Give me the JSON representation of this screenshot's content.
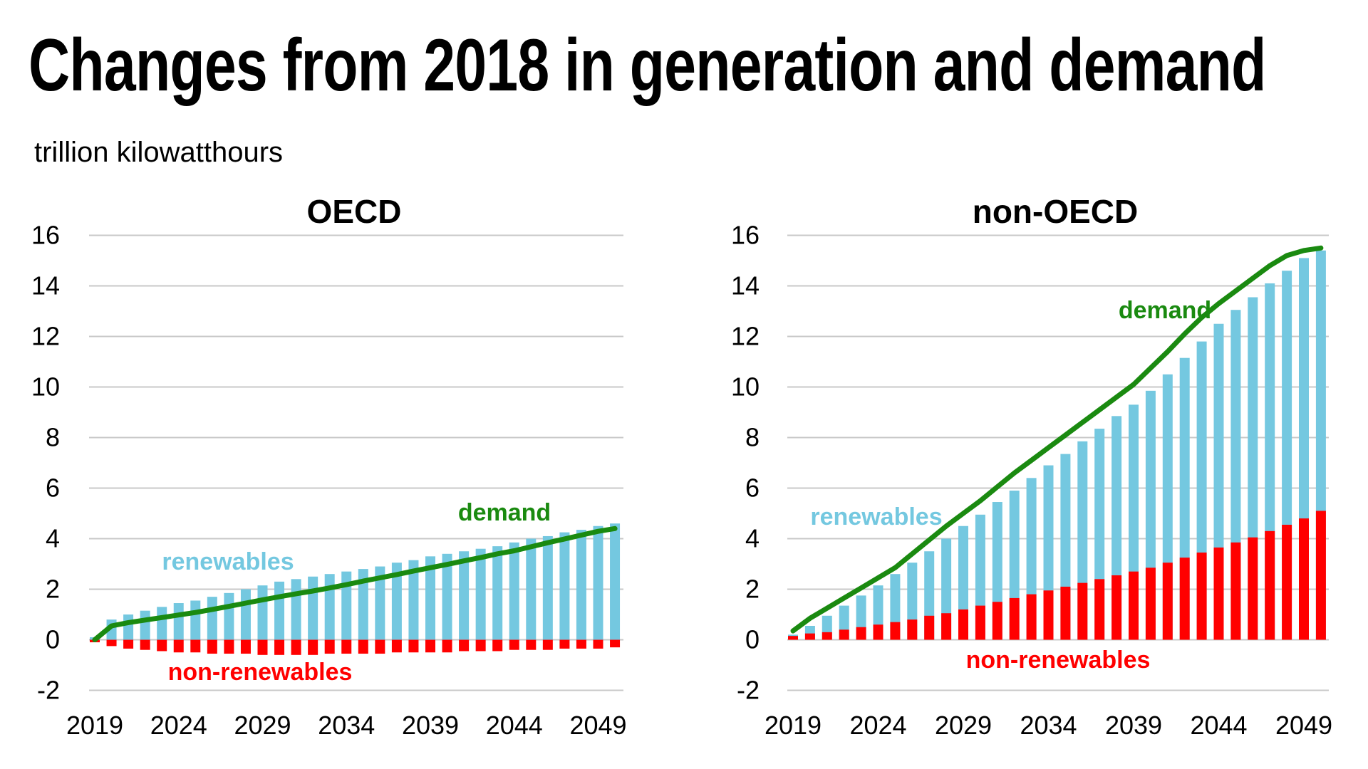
{
  "title": "Changes from 2018 in generation and demand",
  "subtitle": "trillion kilowatthours",
  "colors": {
    "renewables": "#74c8e0",
    "non_renewables": "#ff0000",
    "demand": "#1a8a10",
    "grid": "#c8c8c8"
  },
  "chart_data": [
    {
      "type": "bar",
      "title": "OECD",
      "x": [
        2019,
        2020,
        2021,
        2022,
        2023,
        2024,
        2025,
        2026,
        2027,
        2028,
        2029,
        2030,
        2031,
        2032,
        2033,
        2034,
        2035,
        2036,
        2037,
        2038,
        2039,
        2040,
        2041,
        2042,
        2043,
        2044,
        2045,
        2046,
        2047,
        2048,
        2049,
        2050
      ],
      "xticks": [
        "2019",
        "2024",
        "2029",
        "2034",
        "2039",
        "2044",
        "2049"
      ],
      "ylim": [
        -2,
        16
      ],
      "yticks": [
        "-2",
        "0",
        "2",
        "4",
        "6",
        "8",
        "10",
        "12",
        "14",
        "16"
      ],
      "grid": true,
      "series": [
        {
          "name": "renewables",
          "kind": "bar",
          "values": [
            0.1,
            0.8,
            1.0,
            1.15,
            1.3,
            1.45,
            1.55,
            1.7,
            1.85,
            2.0,
            2.15,
            2.3,
            2.4,
            2.5,
            2.6,
            2.7,
            2.8,
            2.9,
            3.05,
            3.15,
            3.3,
            3.4,
            3.5,
            3.6,
            3.7,
            3.85,
            4.0,
            4.1,
            4.25,
            4.35,
            4.5,
            4.6
          ]
        },
        {
          "name": "non-renewables",
          "kind": "bar",
          "values": [
            -0.1,
            -0.25,
            -0.35,
            -0.4,
            -0.45,
            -0.5,
            -0.5,
            -0.55,
            -0.55,
            -0.55,
            -0.6,
            -0.6,
            -0.6,
            -0.6,
            -0.55,
            -0.55,
            -0.55,
            -0.55,
            -0.5,
            -0.5,
            -0.5,
            -0.5,
            -0.45,
            -0.45,
            -0.45,
            -0.4,
            -0.4,
            -0.4,
            -0.35,
            -0.35,
            -0.35,
            -0.3
          ]
        },
        {
          "name": "demand",
          "kind": "line",
          "values": [
            0.0,
            0.55,
            0.68,
            0.78,
            0.88,
            0.98,
            1.08,
            1.2,
            1.32,
            1.45,
            1.58,
            1.7,
            1.82,
            1.93,
            2.05,
            2.18,
            2.32,
            2.45,
            2.58,
            2.72,
            2.85,
            2.98,
            3.12,
            3.25,
            3.4,
            3.52,
            3.68,
            3.84,
            3.99,
            4.14,
            4.29,
            4.4
          ]
        }
      ],
      "annotations": {
        "renewables": "renewables",
        "non_renewables": "non-renewables",
        "demand": "demand"
      }
    },
    {
      "type": "bar",
      "title": "non-OECD",
      "x": [
        2019,
        2020,
        2021,
        2022,
        2023,
        2024,
        2025,
        2026,
        2027,
        2028,
        2029,
        2030,
        2031,
        2032,
        2033,
        2034,
        2035,
        2036,
        2037,
        2038,
        2039,
        2040,
        2041,
        2042,
        2043,
        2044,
        2045,
        2046,
        2047,
        2048,
        2049,
        2050
      ],
      "xticks": [
        "2019",
        "2024",
        "2029",
        "2034",
        "2039",
        "2044",
        "2049"
      ],
      "ylim": [
        -2,
        16
      ],
      "yticks": [
        "-2",
        "0",
        "2",
        "4",
        "6",
        "8",
        "10",
        "12",
        "14",
        "16"
      ],
      "grid": true,
      "series": [
        {
          "name": "renewables",
          "kind": "bar",
          "values": [
            0.2,
            0.55,
            0.95,
            1.35,
            1.75,
            2.15,
            2.6,
            3.05,
            3.5,
            4.0,
            4.5,
            4.95,
            5.45,
            5.9,
            6.4,
            6.9,
            7.35,
            7.85,
            8.35,
            8.85,
            9.3,
            9.85,
            10.5,
            11.15,
            11.8,
            12.5,
            13.05,
            13.55,
            14.1,
            14.6,
            15.1,
            15.4
          ]
        },
        {
          "name": "non-renewables",
          "kind": "bar",
          "values": [
            0.15,
            0.25,
            0.3,
            0.4,
            0.5,
            0.6,
            0.7,
            0.8,
            0.95,
            1.05,
            1.2,
            1.35,
            1.5,
            1.65,
            1.8,
            1.95,
            2.1,
            2.25,
            2.4,
            2.55,
            2.7,
            2.85,
            3.05,
            3.25,
            3.45,
            3.65,
            3.85,
            4.05,
            4.3,
            4.55,
            4.8,
            5.1
          ]
        },
        {
          "name": "demand",
          "kind": "line",
          "values": [
            0.35,
            0.85,
            1.25,
            1.65,
            2.05,
            2.45,
            2.85,
            3.4,
            3.95,
            4.5,
            5.0,
            5.5,
            6.05,
            6.6,
            7.1,
            7.6,
            8.1,
            8.6,
            9.1,
            9.6,
            10.1,
            10.75,
            11.4,
            12.1,
            12.75,
            13.3,
            13.8,
            14.3,
            14.8,
            15.2,
            15.4,
            15.5
          ]
        }
      ],
      "annotations": {
        "renewables": "renewables",
        "non_renewables": "non-renewables",
        "demand": "demand"
      }
    }
  ]
}
